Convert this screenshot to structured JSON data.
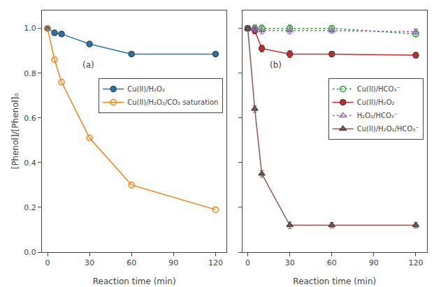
{
  "chart_data": [
    {
      "type": "line",
      "annotations": [
        "(a)"
      ],
      "xlabel": "Reaction time (min)",
      "ylabel": "[Phenol]/[Phenol]₀",
      "x": [
        0,
        5,
        10,
        30,
        60,
        120
      ],
      "series": [
        {
          "name": "Cu(II)/H₂O₂",
          "values": [
            1.0,
            0.98,
            0.975,
            0.93,
            0.885,
            0.885
          ],
          "marker": "circle",
          "line_style": "solid"
        },
        {
          "name": "Cu(II)/H₂O₂/CO₂ saturation",
          "values": [
            1.0,
            0.86,
            0.76,
            0.51,
            0.3,
            0.19
          ],
          "marker": "circle-open",
          "line_style": "solid"
        }
      ],
      "xlim": [
        -4,
        128
      ],
      "ylim": [
        0.0,
        1.08
      ],
      "xticks": [
        0,
        30,
        60,
        90,
        120
      ],
      "yticks": [
        {
          "value": 0.0,
          "label": "0.0"
        },
        0.2,
        0.4,
        0.6,
        0.8,
        {
          "value": 1.0,
          "label": "1.0"
        }
      ],
      "grid": false,
      "legend": "right"
    },
    {
      "type": "line",
      "annotations": [
        "(b)"
      ],
      "xlabel": "Reaction time (min)",
      "x": [
        0,
        5,
        10,
        30,
        60,
        120
      ],
      "series": [
        {
          "name": "Cu(II)/HCO₃⁻",
          "values": [
            1.0,
            1.0,
            1.0,
            1.0,
            1.0,
            0.975
          ],
          "errors": [
            0.012,
            0.015,
            0.015,
            0.015,
            0.012,
            0.012
          ],
          "marker": "circle-open",
          "line_style": "dotted"
        },
        {
          "name": "Cu(II)/H₂O₂",
          "values": [
            1.0,
            0.99,
            0.91,
            0.885,
            0.885,
            0.88
          ],
          "errors": [
            0.012,
            0.015,
            0.015,
            0.015,
            0.012,
            0.012
          ],
          "marker": "circle",
          "line_style": "solid"
        },
        {
          "name": "H₂O₂/HCO₃⁻",
          "values": [
            1.0,
            1.0,
            0.99,
            0.99,
            0.99,
            0.985
          ],
          "errors": [
            0.012,
            0.015,
            0.015,
            0.015,
            0.012,
            0.012
          ],
          "marker": "triangle-up-open",
          "line_style": "dotted"
        },
        {
          "name": "Cu(II)/H₂O₂/HCO₃⁻",
          "values": [
            1.0,
            0.64,
            0.35,
            0.12,
            0.12,
            0.12
          ],
          "errors": [
            0.012,
            0.015,
            0.015,
            0.015,
            0.012,
            0.012
          ],
          "marker": "triangle-up",
          "line_style": "solid"
        }
      ],
      "xlim": [
        -4,
        128
      ],
      "ylim": [
        0.0,
        1.08
      ],
      "xticks": [
        0,
        30,
        60,
        90,
        120
      ],
      "yticks": [
        0.0,
        0.2,
        0.4,
        0.6,
        0.8,
        1.0
      ],
      "tick_labels": "x",
      "grid": false,
      "legend": "right"
    }
  ]
}
